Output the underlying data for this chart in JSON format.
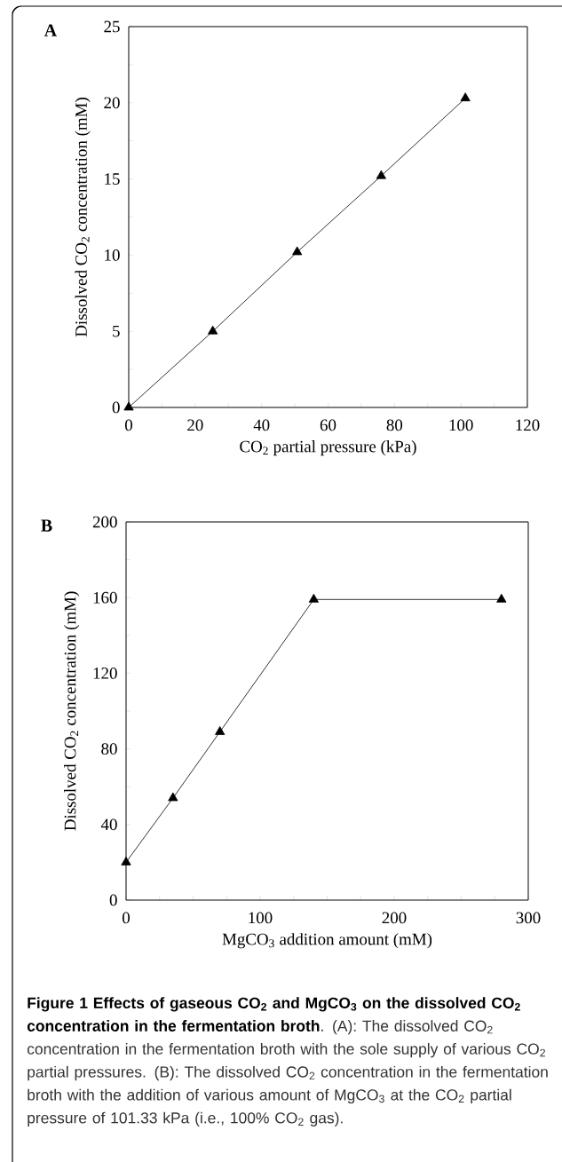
{
  "chart_data": [
    {
      "type": "line",
      "title": "A",
      "xlabel": "CO$_{2}$ partial pressure (kPa)",
      "ylabel": "Dissolved CO$_{2}$ concentration (mM)",
      "x": [
        0,
        25.3,
        50.7,
        76,
        101.33
      ],
      "values": [
        0,
        5,
        10.2,
        15.2,
        20.3
      ],
      "color": "#000000",
      "marker": "triangle",
      "line_style": "solid",
      "xlim": [
        0,
        120
      ],
      "ylim": [
        0,
        25
      ],
      "xticks": [
        0,
        {
          "value": 10,
          "label": null
        },
        20,
        {
          "value": 30,
          "label": null
        },
        40,
        {
          "value": 50,
          "label": null
        },
        60,
        {
          "value": 70,
          "label": null
        },
        80,
        {
          "value": 90,
          "label": null
        },
        100,
        {
          "value": 110,
          "label": null
        },
        120
      ],
      "yticks": [
        0,
        {
          "value": 2.5,
          "label": null
        },
        5,
        {
          "value": 7.5,
          "label": null
        },
        10,
        {
          "value": 12.5,
          "label": null
        },
        15,
        {
          "value": 17.5,
          "label": null
        },
        20,
        {
          "value": 22.5,
          "label": null
        },
        25
      ]
    },
    {
      "type": "line",
      "title": "B",
      "xlabel": "MgCO$_{3}$ addition amount (mM)",
      "ylabel": "Dissolved CO$_{2}$ concentration (mM)",
      "x": [
        0,
        35,
        70,
        140,
        280
      ],
      "values": [
        20,
        54,
        89,
        159,
        159
      ],
      "color": "#000000",
      "marker": "triangle",
      "line_style": "solid",
      "xlim": [
        0,
        300
      ],
      "ylim": [
        0,
        200
      ],
      "xticks": [
        0,
        {
          "value": 25,
          "label": null
        },
        {
          "value": 50,
          "label": null
        },
        {
          "value": 75,
          "label": null
        },
        100,
        {
          "value": 125,
          "label": null
        },
        {
          "value": 150,
          "label": null
        },
        {
          "value": 175,
          "label": null
        },
        200,
        {
          "value": 225,
          "label": null
        },
        {
          "value": 250,
          "label": null
        },
        {
          "value": 275,
          "label": null
        },
        300
      ],
      "yticks": [
        0,
        {
          "value": 20,
          "label": null
        },
        40,
        {
          "value": 60,
          "label": null
        },
        80,
        {
          "value": 100,
          "label": null
        },
        120,
        {
          "value": 140,
          "label": null
        },
        160,
        {
          "value": 180,
          "label": null
        },
        200
      ],
      "annotations": [
        "Figure 1 Effects of gaseous CO$_{2}$ and MgCO$_{3}$ on the dissolved CO$_{2}$ concentration in the fermentation broth",
        ". (A): The dissolved CO$_{2}$ concentration in the fermentation broth with the sole supply of various CO$_{2}$ partial pressures. (B): The dissolved CO$_{2}$ concentration in the fermentation broth with the addition of various amount of MgCO$_{3}$ at the CO$_{2}$ partial pressure of 101.33 kPa (i.e., 100% CO$_{2}$ gas)."
      ]
    }
  ]
}
